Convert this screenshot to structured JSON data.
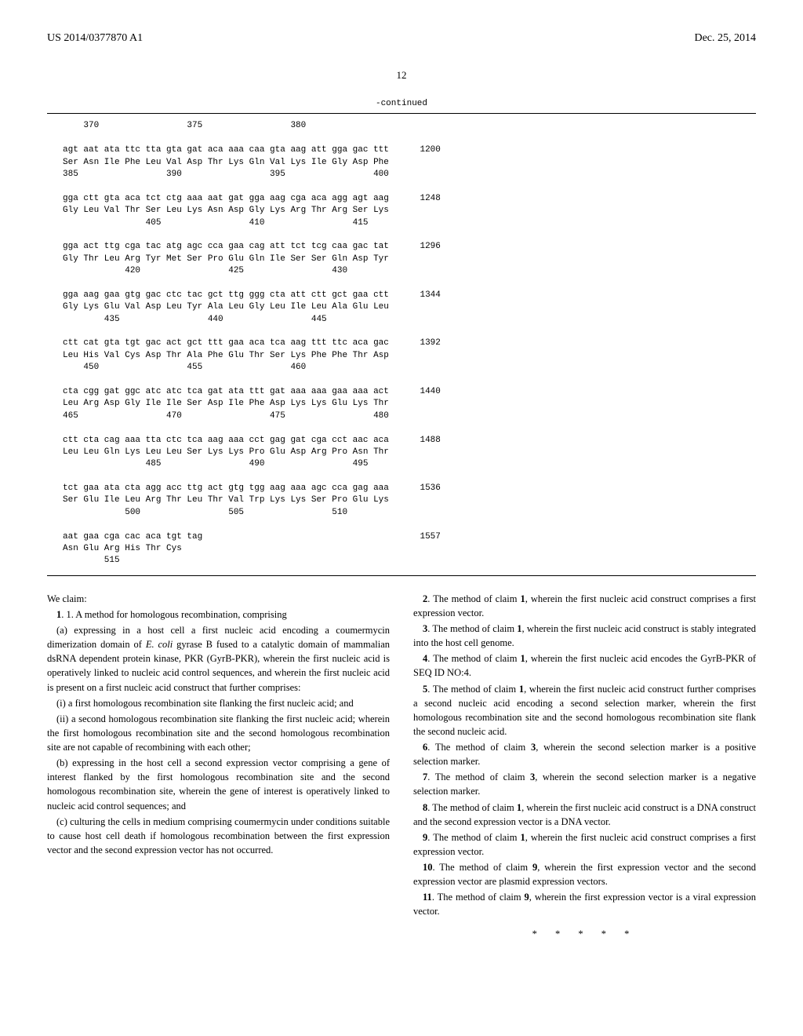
{
  "header": {
    "pub_number": "US 2014/0377870 A1",
    "pub_date": "Dec. 25, 2014"
  },
  "page_number": "12",
  "continued_label": "-continued",
  "sequence": {
    "rows": [
      "    370                 375                 380",
      "",
      "agt aat ata ttc tta gta gat aca aaa caa gta aag att gga gac ttt      1200",
      "Ser Asn Ile Phe Leu Val Asp Thr Lys Gln Val Lys Ile Gly Asp Phe",
      "385                 390                 395                 400",
      "",
      "gga ctt gta aca tct ctg aaa aat gat gga aag cga aca agg agt aag      1248",
      "Gly Leu Val Thr Ser Leu Lys Asn Asp Gly Lys Arg Thr Arg Ser Lys",
      "                405                 410                 415",
      "",
      "gga act ttg cga tac atg agc cca gaa cag att tct tcg caa gac tat      1296",
      "Gly Thr Leu Arg Tyr Met Ser Pro Glu Gln Ile Ser Ser Gln Asp Tyr",
      "            420                 425                 430",
      "",
      "gga aag gaa gtg gac ctc tac gct ttg ggg cta att ctt gct gaa ctt      1344",
      "Gly Lys Glu Val Asp Leu Tyr Ala Leu Gly Leu Ile Leu Ala Glu Leu",
      "        435                 440                 445",
      "",
      "ctt cat gta tgt gac act gct ttt gaa aca tca aag ttt ttc aca gac      1392",
      "Leu His Val Cys Asp Thr Ala Phe Glu Thr Ser Lys Phe Phe Thr Asp",
      "    450                 455                 460",
      "",
      "cta cgg gat ggc atc atc tca gat ata ttt gat aaa aaa gaa aaa act      1440",
      "Leu Arg Asp Gly Ile Ile Ser Asp Ile Phe Asp Lys Lys Glu Lys Thr",
      "465                 470                 475                 480",
      "",
      "ctt cta cag aaa tta ctc tca aag aaa cct gag gat cga cct aac aca      1488",
      "Leu Leu Gln Lys Leu Leu Ser Lys Lys Pro Glu Asp Arg Pro Asn Thr",
      "                485                 490                 495",
      "",
      "tct gaa ata cta agg acc ttg act gtg tgg aag aaa agc cca gag aaa      1536",
      "Ser Glu Ile Leu Arg Thr Leu Thr Val Trp Lys Lys Ser Pro Glu Lys",
      "            500                 505                 510",
      "",
      "aat gaa cga cac aca tgt tag                                          1557",
      "Asn Glu Arg His Thr Cys",
      "        515"
    ]
  },
  "left_column": {
    "we_claim": "We claim:",
    "claim1_intro": "1. A method for homologous recombination, comprising",
    "claim1_a": "(a) expressing in a host cell a first nucleic acid encoding a coumermycin dimerization domain of ",
    "claim1_a_italic": "E. coli",
    "claim1_a_cont": " gyrase B fused to a catalytic domain of mammalian dsRNA dependent protein kinase, PKR (GyrB-PKR), wherein the first nucleic acid is operatively linked to nucleic acid control sequences, and wherein the first nucleic acid is present on a first nucleic acid construct that further comprises:",
    "claim1_a_i": "(i) a first homologous recombination site flanking the first nucleic acid; and",
    "claim1_a_ii": "(ii) a second homologous recombination site flanking the first nucleic acid; wherein the first homologous recombination site and the second homologous recombination site are not capable of recombining with each other;",
    "claim1_b": "(b) expressing in the host cell a second expression vector comprising a gene of interest flanked by the first homologous recombination site and the second homologous recombination site, wherein the gene of interest is operatively linked to nucleic acid control sequences; and",
    "claim1_c": "(c) culturing the cells in medium comprising coumermycin under conditions suitable to cause host cell death if homologous recombination between the first expression vector and the second expression vector has not occurred."
  },
  "right_column": {
    "claim2": "2. The method of claim 1, wherein the first nucleic acid construct comprises a first expression vector.",
    "claim3": "3. The method of claim 1, wherein the first nucleic acid construct is stably integrated into the host cell genome.",
    "claim4": "4. The method of claim 1, wherein the first nucleic acid encodes the GyrB-PKR of SEQ ID NO:4.",
    "claim5": "5. The method of claim 1, wherein the first nucleic acid construct further comprises a second nucleic acid encoding a second selection marker, wherein the first homologous recombination site and the second homologous recombination site flank the second nucleic acid.",
    "claim6": "6. The method of claim 3, wherein the second selection marker is a positive selection marker.",
    "claim7": "7. The method of claim 3, wherein the second selection marker is a negative selection marker.",
    "claim8": "8. The method of claim 1, wherein the first nucleic acid construct is a DNA construct and the second expression vector is a DNA vector.",
    "claim9": "9. The method of claim 1, wherein the first nucleic acid construct comprises a first expression vector.",
    "claim10": "10. The method of claim 9, wherein the first expression vector and the second expression vector are plasmid expression vectors.",
    "claim11": "11. The method of claim 9, wherein the first expression vector is a viral expression vector."
  },
  "stars": "* * * * *"
}
